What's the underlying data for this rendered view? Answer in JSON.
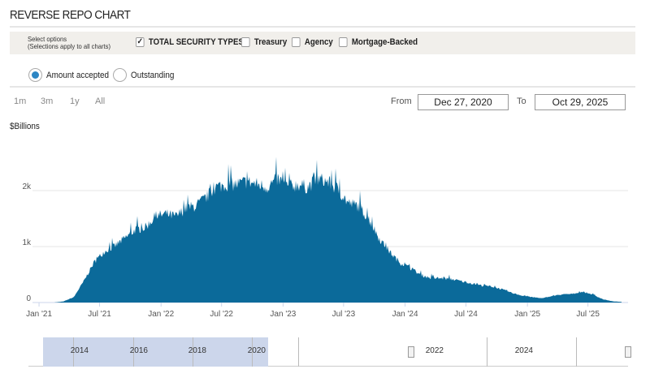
{
  "header": {
    "title": "REVERSE REPO CHART"
  },
  "options": {
    "hint_line1": "Select options",
    "hint_line2": "(Selections apply to all charts)",
    "checkboxes": [
      {
        "label": "TOTAL SECURITY TYPES",
        "checked": true
      },
      {
        "label": "Treasury",
        "checked": false
      },
      {
        "label": "Agency",
        "checked": false
      },
      {
        "label": "Mortgage-Backed",
        "checked": false
      }
    ],
    "radios": [
      {
        "label": "Amount accepted",
        "selected": true
      },
      {
        "label": "Outstanding",
        "selected": false
      }
    ]
  },
  "range": {
    "buttons": [
      "1m",
      "3m",
      "1y",
      "All"
    ],
    "from_label": "From",
    "from": "Dec 27, 2020",
    "to_label": "To",
    "to": "Oct 29, 2025"
  },
  "colors": {
    "series": "#0b6a9a",
    "navigator_mask": "#ccd6eb",
    "accent": "#2c86c4"
  },
  "chart_data": {
    "type": "area",
    "ylabel": "$Billions",
    "ylim": [
      0,
      2500
    ],
    "yticks": [
      {
        "v": 0,
        "label": "0"
      },
      {
        "v": 1000,
        "label": "1k"
      },
      {
        "v": 2000,
        "label": "2k"
      }
    ],
    "xlim": [
      "2020-12-27",
      "2025-10-29"
    ],
    "xticks": [
      {
        "d": "2021-01-01",
        "label": "Jan '21"
      },
      {
        "d": "2021-07-01",
        "label": "Jul '21"
      },
      {
        "d": "2022-01-01",
        "label": "Jan '22"
      },
      {
        "d": "2022-07-01",
        "label": "Jul '22"
      },
      {
        "d": "2023-01-01",
        "label": "Jan '23"
      },
      {
        "d": "2023-07-01",
        "label": "Jul '23"
      },
      {
        "d": "2024-01-01",
        "label": "Jan '24"
      },
      {
        "d": "2024-07-01",
        "label": "Jul '24"
      },
      {
        "d": "2025-01-01",
        "label": "Jan '25"
      },
      {
        "d": "2025-07-01",
        "label": "Jul '25"
      }
    ],
    "grid": true,
    "x": [
      "2021-01",
      "2021-02",
      "2021-03",
      "2021-04",
      "2021-05",
      "2021-06",
      "2021-07",
      "2021-08",
      "2021-09",
      "2021-10",
      "2021-11",
      "2021-12",
      "2022-01",
      "2022-02",
      "2022-03",
      "2022-04",
      "2022-05",
      "2022-06",
      "2022-07",
      "2022-08",
      "2022-09",
      "2022-10",
      "2022-11",
      "2022-12",
      "2023-01",
      "2023-02",
      "2023-03",
      "2023-04",
      "2023-05",
      "2023-06",
      "2023-07",
      "2023-08",
      "2023-09",
      "2023-10",
      "2023-11",
      "2023-12",
      "2024-01",
      "2024-02",
      "2024-03",
      "2024-04",
      "2024-05",
      "2024-06",
      "2024-07",
      "2024-08",
      "2024-09",
      "2024-10",
      "2024-11",
      "2024-12",
      "2025-01",
      "2025-02",
      "2025-03",
      "2025-04",
      "2025-05",
      "2025-06",
      "2025-07",
      "2025-08",
      "2025-09",
      "2025-10"
    ],
    "values": [
      0,
      0,
      20,
      100,
      400,
      750,
      950,
      1050,
      1200,
      1350,
      1400,
      1600,
      1650,
      1600,
      1750,
      1800,
      1950,
      2150,
      2200,
      2200,
      2250,
      2200,
      2150,
      2300,
      2150,
      2200,
      2150,
      2300,
      2250,
      2100,
      1850,
      1800,
      1550,
      1200,
      950,
      750,
      650,
      520,
      460,
      450,
      440,
      400,
      360,
      320,
      300,
      250,
      180,
      130,
      100,
      80,
      120,
      150,
      160,
      200,
      150,
      60,
      20,
      10
    ]
  },
  "navigator": {
    "labels": [
      "2014",
      "2016",
      "2018",
      "2020",
      "2022",
      "2024"
    ]
  }
}
